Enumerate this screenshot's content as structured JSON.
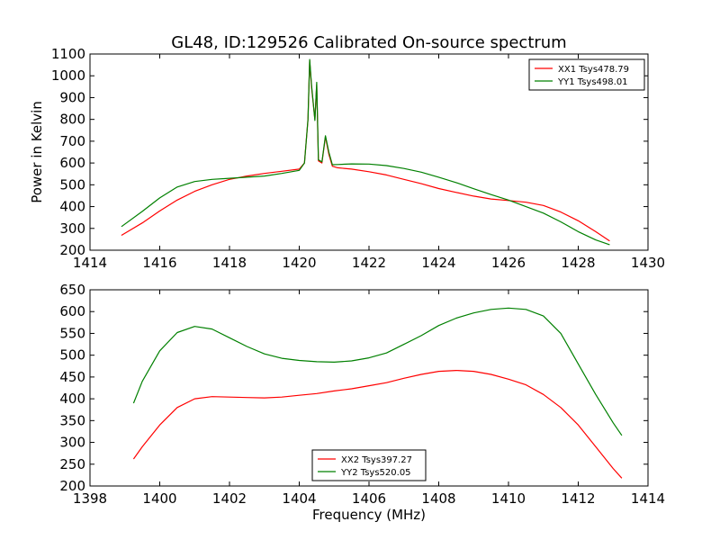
{
  "title": "GL48, ID:129526 Calibrated On-source spectrum",
  "chart_data": [
    {
      "type": "line",
      "title": "GL48, ID:129526 Calibrated On-source spectrum",
      "xlabel": "",
      "ylabel": "Power in Kelvin",
      "xlim": [
        1414,
        1430
      ],
      "ylim": [
        200,
        1100
      ],
      "xticks": [
        "1414",
        "1416",
        "1418",
        "1420",
        "1422",
        "1424",
        "1426",
        "1428",
        "1430"
      ],
      "yticks": [
        "200",
        "300",
        "400",
        "500",
        "600",
        "700",
        "800",
        "900",
        "1000",
        "1100"
      ],
      "legend_position": "top-right",
      "series": [
        {
          "name": "XX1 Tsys478.79",
          "color": "#ff0000",
          "x": [
            1414.9,
            1415.5,
            1416.0,
            1416.5,
            1417.0,
            1417.5,
            1418.0,
            1418.5,
            1419.0,
            1419.5,
            1420.0,
            1420.15,
            1420.25,
            1420.3,
            1420.35,
            1420.45,
            1420.5,
            1420.55,
            1420.65,
            1420.75,
            1420.85,
            1420.95,
            1421.1,
            1421.5,
            1422.0,
            1422.5,
            1423.0,
            1423.5,
            1424.0,
            1424.5,
            1425.0,
            1425.5,
            1426.0,
            1426.5,
            1427.0,
            1427.5,
            1428.0,
            1428.5,
            1428.9
          ],
          "y": [
            268,
            325,
            380,
            430,
            470,
            500,
            525,
            540,
            552,
            562,
            572,
            600,
            800,
            1070,
            950,
            800,
            960,
            610,
            600,
            720,
            640,
            585,
            578,
            572,
            560,
            545,
            525,
            505,
            483,
            465,
            448,
            435,
            428,
            420,
            405,
            375,
            335,
            285,
            242
          ]
        },
        {
          "name": "YY1 Tsys498.01",
          "color": "#008000",
          "x": [
            1414.9,
            1415.5,
            1416.0,
            1416.5,
            1417.0,
            1417.5,
            1418.0,
            1418.5,
            1419.0,
            1419.5,
            1420.0,
            1420.15,
            1420.25,
            1420.3,
            1420.35,
            1420.45,
            1420.5,
            1420.55,
            1420.65,
            1420.75,
            1420.85,
            1420.95,
            1421.1,
            1421.5,
            1422.0,
            1422.5,
            1423.0,
            1423.5,
            1424.0,
            1424.5,
            1425.0,
            1425.5,
            1426.0,
            1426.5,
            1427.0,
            1427.5,
            1428.0,
            1428.5,
            1428.9
          ],
          "y": [
            308,
            378,
            440,
            490,
            515,
            525,
            530,
            535,
            540,
            552,
            566,
            600,
            800,
            1075,
            960,
            795,
            970,
            615,
            605,
            725,
            650,
            592,
            593,
            596,
            595,
            588,
            575,
            558,
            535,
            510,
            482,
            455,
            430,
            400,
            370,
            330,
            285,
            247,
            225
          ]
        }
      ]
    },
    {
      "type": "line",
      "title": "",
      "xlabel": "Frequency (MHz)",
      "ylabel": "",
      "xlim": [
        1398,
        1414
      ],
      "ylim": [
        200,
        650
      ],
      "xticks": [
        "1398",
        "1400",
        "1402",
        "1404",
        "1406",
        "1408",
        "1410",
        "1412",
        "1414"
      ],
      "yticks": [
        "200",
        "250",
        "300",
        "350",
        "400",
        "450",
        "500",
        "550",
        "600",
        "650"
      ],
      "legend_position": "bottom-center",
      "series": [
        {
          "name": "XX2 Tsys397.27",
          "color": "#ff0000",
          "x": [
            1399.25,
            1399.5,
            1400.0,
            1400.5,
            1401.0,
            1401.5,
            1402.0,
            1402.5,
            1403.0,
            1403.5,
            1404.0,
            1404.5,
            1405.0,
            1405.5,
            1406.0,
            1406.5,
            1407.0,
            1407.5,
            1408.0,
            1408.5,
            1409.0,
            1409.5,
            1410.0,
            1410.5,
            1411.0,
            1411.5,
            1412.0,
            1412.5,
            1413.0,
            1413.25
          ],
          "y": [
            262,
            290,
            340,
            380,
            400,
            405,
            404,
            403,
            402,
            404,
            408,
            412,
            418,
            423,
            430,
            437,
            447,
            456,
            463,
            465,
            463,
            456,
            445,
            432,
            410,
            380,
            340,
            290,
            240,
            218
          ]
        },
        {
          "name": "YY2 Tsys520.05",
          "color": "#008000",
          "x": [
            1399.25,
            1399.5,
            1400.0,
            1400.5,
            1401.0,
            1401.5,
            1402.0,
            1402.5,
            1403.0,
            1403.5,
            1404.0,
            1404.5,
            1405.0,
            1405.5,
            1406.0,
            1406.5,
            1407.0,
            1407.5,
            1408.0,
            1408.5,
            1409.0,
            1409.5,
            1410.0,
            1410.5,
            1411.0,
            1411.5,
            1412.0,
            1412.5,
            1413.0,
            1413.25
          ],
          "y": [
            390,
            440,
            510,
            552,
            566,
            560,
            540,
            520,
            503,
            493,
            488,
            485,
            484,
            487,
            494,
            505,
            525,
            545,
            568,
            585,
            597,
            605,
            608,
            605,
            590,
            550,
            480,
            410,
            345,
            316
          ]
        }
      ]
    }
  ]
}
